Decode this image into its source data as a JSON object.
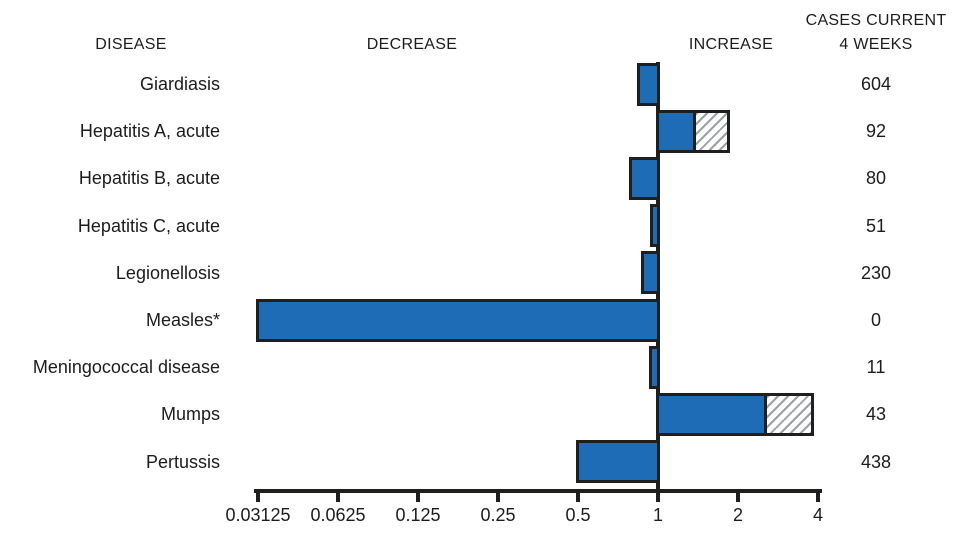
{
  "header": {
    "disease": "DISEASE",
    "decrease": "DECREASE",
    "increase": "INCREASE",
    "cases_line1": "CASES CURRENT",
    "cases_line2": "4 WEEKS"
  },
  "colors": {
    "bar_fill": "#1e6cb5",
    "bar_border": "#1f1f1d",
    "hatch_line": "#9aa0a4",
    "axis": "#1f1f1d",
    "text": "#1c1c1c"
  },
  "chart_data": {
    "type": "bar",
    "orientation": "horizontal",
    "x_scale": "log2",
    "baseline": 1,
    "x_range": [
      0.03125,
      4
    ],
    "x_ticks": [
      "0.03125",
      "0.0625",
      "0.125",
      "0.25",
      "0.5",
      "1",
      "2",
      "4"
    ],
    "x_tick_values": [
      0.03125,
      0.0625,
      0.125,
      0.25,
      0.5,
      1,
      2,
      4
    ],
    "grid": false,
    "rows": [
      {
        "disease": "Giardiasis",
        "ratio": 0.85,
        "beyond_limit": null,
        "cases": "604"
      },
      {
        "disease": "Hepatitis A, acute",
        "ratio": 1.37,
        "beyond_limit": 1.83,
        "cases": "92"
      },
      {
        "disease": "Hepatitis B, acute",
        "ratio": 0.79,
        "beyond_limit": null,
        "cases": "80"
      },
      {
        "disease": "Hepatitis C, acute",
        "ratio": 0.95,
        "beyond_limit": null,
        "cases": "51"
      },
      {
        "disease": "Legionellosis",
        "ratio": 0.88,
        "beyond_limit": null,
        "cases": "230"
      },
      {
        "disease": "Measles*",
        "ratio": 0.03125,
        "beyond_limit": null,
        "cases": "0"
      },
      {
        "disease": "Meningococcal disease",
        "ratio": 0.94,
        "beyond_limit": null,
        "cases": "11"
      },
      {
        "disease": "Mumps",
        "ratio": 2.53,
        "beyond_limit": 3.8,
        "cases": "43"
      },
      {
        "disease": "Pertussis",
        "ratio": 0.5,
        "beyond_limit": null,
        "cases": "438"
      }
    ]
  }
}
